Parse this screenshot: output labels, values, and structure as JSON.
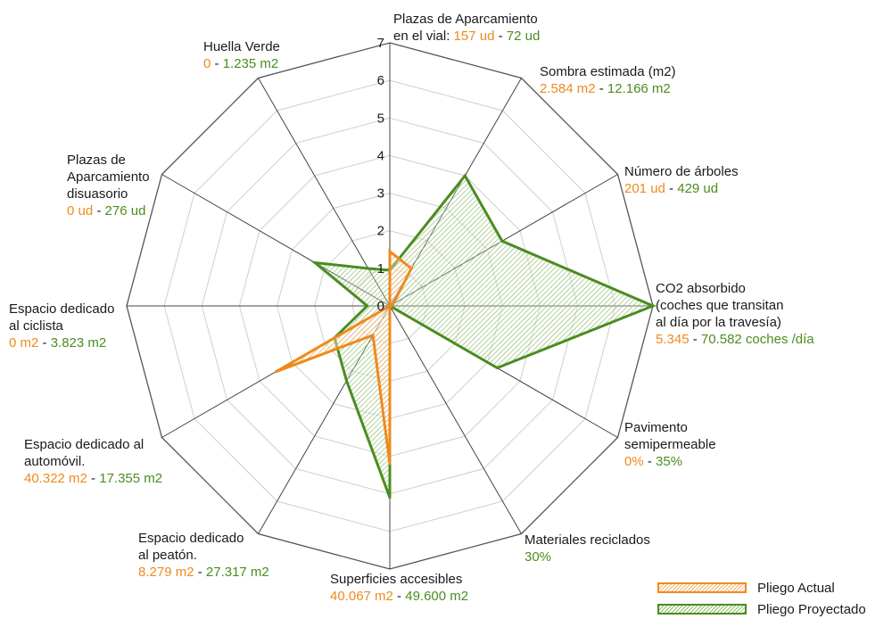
{
  "chart_data": {
    "type": "radar",
    "scale": {
      "min": 0,
      "max": 7,
      "ticks": [
        "0",
        "1",
        "2",
        "3",
        "4",
        "5",
        "6",
        "7"
      ]
    },
    "axes": [
      {
        "name_lines": [
          "Plazas de Aparcamiento",
          "en el vial: "
        ],
        "value_actual": "157 ud",
        "value_proj": "72 ud"
      },
      {
        "name_lines": [
          "Sombra estimada (m2)"
        ],
        "value_actual": "2.584 m2",
        "value_proj": "12.166 m2"
      },
      {
        "name_lines": [
          "Número de árboles"
        ],
        "value_actual": "201 ud",
        "value_proj": "429 ud"
      },
      {
        "name_lines": [
          "CO2 absorbido",
          "(coches que transitan",
          "al día por la travesía)"
        ],
        "value_actual": "5.345",
        "value_proj": "70.582 coches /día"
      },
      {
        "name_lines": [
          "Pavimento",
          "semipermeable"
        ],
        "value_actual": "0%",
        "value_proj": "35%"
      },
      {
        "name_lines": [
          "Materiales reciclados"
        ],
        "value_actual": "",
        "value_proj": "30%"
      },
      {
        "name_lines": [
          "Superficies accesibles"
        ],
        "value_actual": "40.067 m2",
        "value_proj": "49.600 m2"
      },
      {
        "name_lines": [
          "Espacio dedicado",
          "al peatón."
        ],
        "value_actual": "8.279 m2",
        "value_proj": "27.317 m2"
      },
      {
        "name_lines": [
          "Espacio dedicado al",
          "automóvil."
        ],
        "value_actual": "40.322 m2",
        "value_proj": "17.355 m2"
      },
      {
        "name_lines": [
          "Espacio dedicado",
          "al ciclista"
        ],
        "value_actual": "0 m2",
        "value_proj": "3.823 m2"
      },
      {
        "name_lines": [
          "Plazas de",
          "Aparcamiento",
          "disuasorio"
        ],
        "value_actual": "0 ud",
        "value_proj": "276 ud"
      },
      {
        "name_lines": [
          "Huella Verde"
        ],
        "value_actual": "0",
        "value_proj": "1.235 m2"
      }
    ],
    "series": [
      {
        "name": "Pliego Actual",
        "color": "#ee8a1e",
        "values": [
          1.45,
          1.15,
          0.1,
          0.05,
          0.0,
          0.0,
          4.2,
          0.9,
          3.5,
          0.0,
          0.0,
          0.0
        ]
      },
      {
        "name": "Pliego Proyectado",
        "color": "#4a8d1f",
        "values": [
          0.95,
          4.0,
          3.45,
          7.0,
          3.3,
          0.0,
          5.1,
          2.3,
          1.7,
          0.6,
          2.3,
          1.15
        ]
      }
    ]
  }
}
